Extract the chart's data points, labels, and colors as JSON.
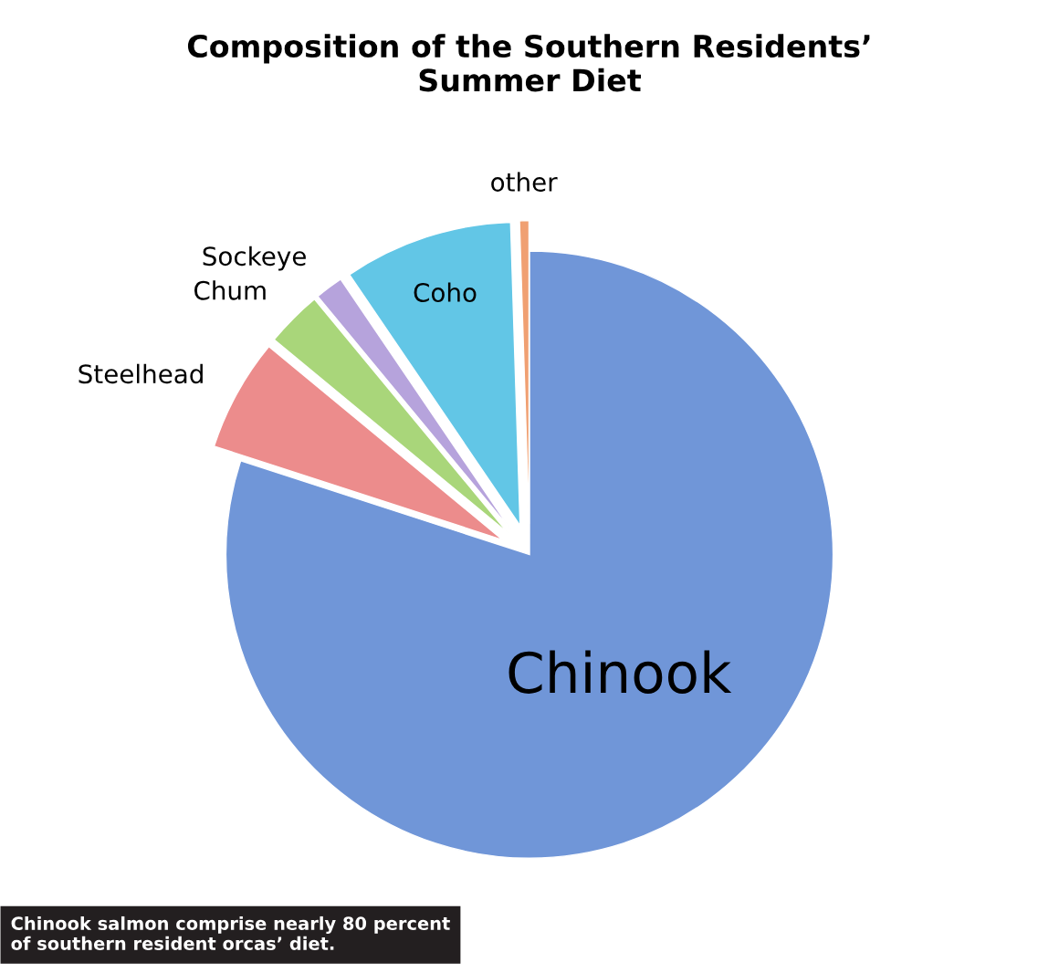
{
  "chart_data": {
    "type": "pie",
    "title": "Composition of the Southern Residents’\nSummer Diet",
    "categories": [
      "Chinook",
      "Steelhead",
      "Chum",
      "Sockeye",
      "Coho",
      "other"
    ],
    "values": [
      80,
      6,
      3,
      1.5,
      9,
      0.5
    ],
    "colors": [
      "#7096d8",
      "#ec8c8c",
      "#a9d67a",
      "#b6a3dc",
      "#62c6e6",
      "#f0a072"
    ],
    "annotations": [
      "Chinook salmon comprise nearly 80 percent\nof southern resident orcas’ diet."
    ]
  }
}
